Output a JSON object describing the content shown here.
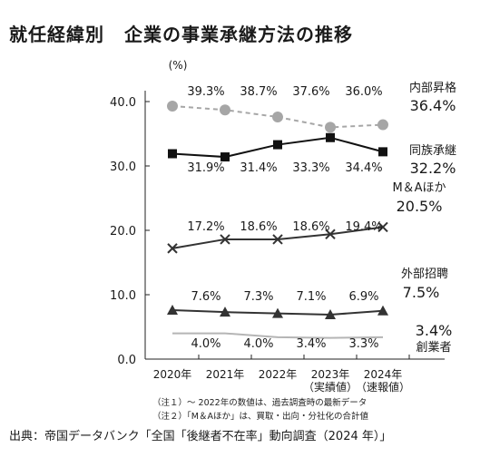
{
  "title": "就任経緯別",
  "subtitle": "企業の事業承継方法の推移",
  "notes": [
    "（注１）～ 2022年の数値は、過去調査時の最新データ",
    "（注２）「M＆Aほか」は、買取・出向・分社化の合計値"
  ],
  "source": "出典：帝国データバンク「全国「後継者不在率」動向調査（2024 年）」",
  "chart_data": {
    "type": "line",
    "ylabel": "(%)",
    "ylim": [
      0,
      40
    ],
    "yticks": [
      "0.0",
      "10.0",
      "20.0",
      "30.0",
      "40.0"
    ],
    "categories": [
      "2020年",
      "2021年",
      "2022年",
      "2023年",
      "2024年"
    ],
    "category_sublabels": [
      "",
      "",
      "",
      "（実績値）",
      "（速報値）"
    ],
    "grid": false,
    "series": [
      {
        "name": "内部昇格",
        "values": [
          39.3,
          38.7,
          37.6,
          36.0,
          36.4
        ],
        "labels": [
          "39.3%",
          "38.7%",
          "37.6%",
          "36.0%",
          "36.4%"
        ],
        "color": "#a6a6a6",
        "marker": "circle",
        "dash": true
      },
      {
        "name": "同族承継",
        "values": [
          31.9,
          31.4,
          33.3,
          34.4,
          32.2
        ],
        "labels": [
          "31.9%",
          "31.4%",
          "33.3%",
          "34.4%",
          "32.2%"
        ],
        "color": "#111111",
        "marker": "square",
        "dash": false
      },
      {
        "name": "M＆Aほか",
        "values": [
          17.2,
          18.6,
          18.6,
          19.4,
          20.5
        ],
        "labels": [
          "17.2%",
          "18.6%",
          "18.6%",
          "19.4%",
          "20.5%"
        ],
        "color": "#333333",
        "marker": "x",
        "dash": false
      },
      {
        "name": "外部招聘",
        "values": [
          7.6,
          7.3,
          7.1,
          6.9,
          7.5
        ],
        "labels": [
          "7.6%",
          "7.3%",
          "7.1%",
          "6.9%",
          "7.5%"
        ],
        "color": "#333333",
        "marker": "triangle",
        "dash": false
      },
      {
        "name": "創業者",
        "values": [
          4.0,
          4.0,
          3.4,
          3.3,
          3.4
        ],
        "labels": [
          "4.0%",
          "4.0%",
          "3.4%",
          "3.3%",
          "3.4%"
        ],
        "color": "#b5b5b5",
        "marker": "none",
        "dash": false
      }
    ]
  }
}
